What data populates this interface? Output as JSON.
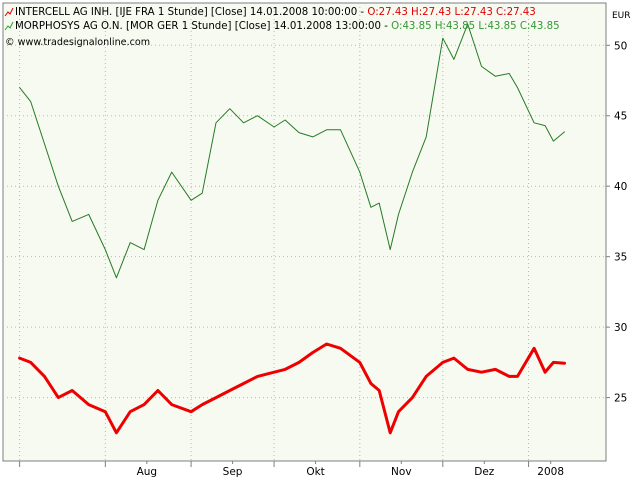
{
  "chart_data": {
    "type": "line",
    "currency_label": "EUR",
    "copyright": "© www.tradesignalonline.com",
    "legend": [
      {
        "icon": "line-chart-icon",
        "prefix": "INTERCELL AG INH. [IJE FRA  1 Stunde] [Close] 14.01.2008 10:00:00 - ",
        "ohlc": "O:27.43 H:27.43 L:27.43 C:27.43",
        "color": "#e00000"
      },
      {
        "icon": "line-chart-icon",
        "prefix": "MORPHOSYS AG O.N. [MOR GER  1 Stunde] [Close] 14.01.2008 13:00:00 - ",
        "ohlc": "O:43.85 H:43.85 L:43.85 C:43.85",
        "color": "#339933"
      }
    ],
    "x_ticks": [
      "Aug",
      "Sep",
      "Okt",
      "Nov",
      "Dez",
      "2008"
    ],
    "y_ticks": [
      25,
      30,
      35,
      40,
      45,
      50
    ],
    "ylim": [
      20.5,
      53
    ],
    "grid": true,
    "series": [
      {
        "name": "MORPHOSYS AG O.N.",
        "color": "#267a26",
        "stroke": 1,
        "x": [
          "2007-07-01",
          "2007-07-05",
          "2007-07-10",
          "2007-07-15",
          "2007-07-20",
          "2007-07-26",
          "2007-08-01",
          "2007-08-05",
          "2007-08-10",
          "2007-08-15",
          "2007-08-20",
          "2007-08-25",
          "2007-09-01",
          "2007-09-05",
          "2007-09-10",
          "2007-09-15",
          "2007-09-20",
          "2007-09-25",
          "2007-10-01",
          "2007-10-05",
          "2007-10-10",
          "2007-10-15",
          "2007-10-20",
          "2007-10-25",
          "2007-11-01",
          "2007-11-05",
          "2007-11-08",
          "2007-11-12",
          "2007-11-15",
          "2007-11-20",
          "2007-11-25",
          "2007-12-01",
          "2007-12-05",
          "2007-12-10",
          "2007-12-15",
          "2007-12-20",
          "2007-12-25",
          "2007-12-28",
          "2008-01-03",
          "2008-01-07",
          "2008-01-10",
          "2008-01-14"
        ],
        "values": [
          47,
          46,
          43,
          40,
          37.5,
          38,
          35.5,
          33.5,
          36,
          35.5,
          39,
          41,
          39,
          39.5,
          44.5,
          45.5,
          44.5,
          45,
          44.2,
          44.7,
          43.8,
          43.5,
          44,
          44,
          41,
          38.5,
          38.8,
          35.5,
          38,
          41,
          43.5,
          50.5,
          49,
          51.5,
          48.5,
          47.8,
          48,
          47,
          44.5,
          44.3,
          43.2,
          43.85
        ]
      },
      {
        "name": "INTERCELL AG INH.",
        "color": "#ee0000",
        "stroke": 3,
        "x": [
          "2007-07-01",
          "2007-07-05",
          "2007-07-10",
          "2007-07-15",
          "2007-07-20",
          "2007-07-26",
          "2007-08-01",
          "2007-08-05",
          "2007-08-10",
          "2007-08-15",
          "2007-08-20",
          "2007-08-25",
          "2007-09-01",
          "2007-09-05",
          "2007-09-10",
          "2007-09-15",
          "2007-09-20",
          "2007-09-25",
          "2007-10-01",
          "2007-10-05",
          "2007-10-10",
          "2007-10-15",
          "2007-10-20",
          "2007-10-25",
          "2007-11-01",
          "2007-11-05",
          "2007-11-08",
          "2007-11-12",
          "2007-11-15",
          "2007-11-20",
          "2007-11-25",
          "2007-12-01",
          "2007-12-05",
          "2007-12-10",
          "2007-12-15",
          "2007-12-20",
          "2007-12-25",
          "2007-12-28",
          "2008-01-03",
          "2008-01-07",
          "2008-01-10",
          "2008-01-14"
        ],
        "values": [
          27.8,
          27.5,
          26.5,
          25,
          25.5,
          24.5,
          24,
          22.5,
          24,
          24.5,
          25.5,
          24.5,
          24,
          24.5,
          25,
          25.5,
          26,
          26.5,
          26.8,
          27,
          27.5,
          28.2,
          28.8,
          28.5,
          27.5,
          26,
          25.5,
          22.5,
          24,
          25,
          26.5,
          27.5,
          27.8,
          27,
          26.8,
          27,
          26.5,
          26.5,
          28.5,
          26.8,
          27.5,
          27.43
        ]
      }
    ]
  }
}
